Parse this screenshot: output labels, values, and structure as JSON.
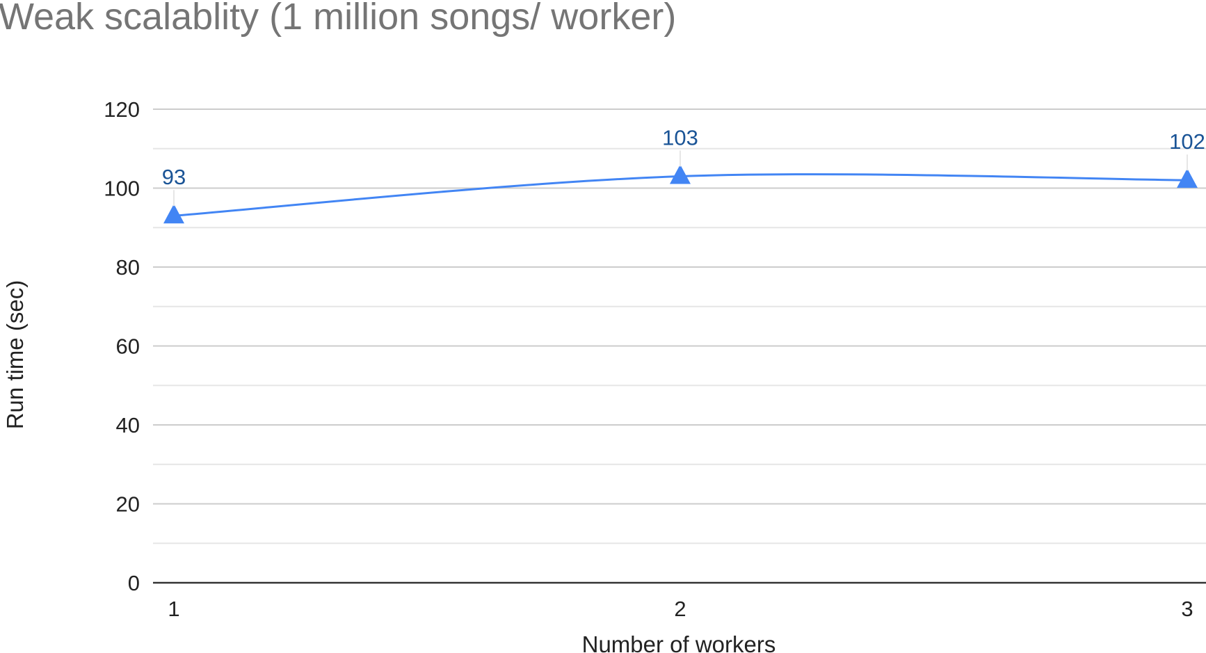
{
  "chart_data": {
    "type": "line",
    "title": "Weak scalablity (1 million songs/ worker)",
    "xlabel": "Number of workers",
    "ylabel": "Run time (sec)",
    "categories": [
      "1",
      "2",
      "3"
    ],
    "series": [
      {
        "name": "Run time (sec)",
        "values": [
          93,
          103,
          102
        ],
        "data_labels": [
          "93",
          "103",
          "102"
        ],
        "marker": "triangle",
        "smooth": true
      }
    ],
    "ylim": [
      0,
      120
    ],
    "yticks": [
      0,
      20,
      40,
      60,
      80,
      100,
      120
    ],
    "ytick_labels": [
      "0",
      "20",
      "40",
      "60",
      "80",
      "100",
      "120"
    ],
    "minor_gridlines": true,
    "grid": true,
    "legend": "none"
  },
  "colors": {
    "series_line": "#4285f4",
    "data_label": "#1a5496",
    "title": "#757575",
    "axis_text": "#222222",
    "major_grid": "#cccccc",
    "minor_grid": "#e6e6e6",
    "baseline": "#333333"
  }
}
